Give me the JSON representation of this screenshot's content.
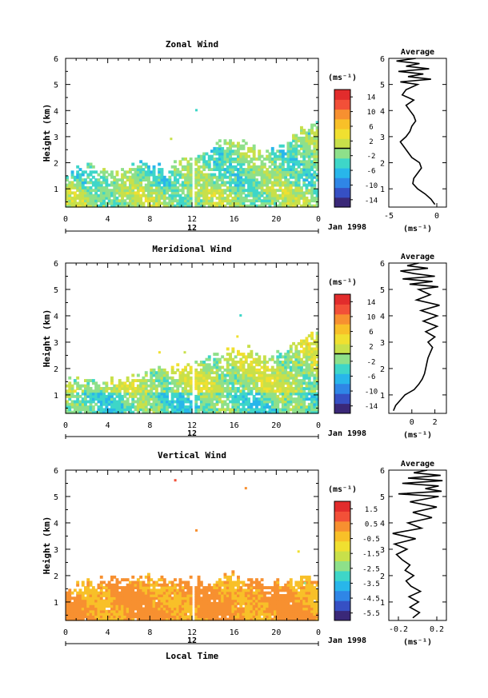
{
  "figure": {
    "x_title": "Local Time",
    "date_label": "Jan 1998",
    "day_label": "12"
  },
  "chart_data": [
    {
      "type": "heatmap",
      "title": "Zonal Wind",
      "xlabel": "",
      "ylabel": "Height (km)",
      "xlim": [
        0,
        24
      ],
      "ylim": [
        0.3,
        6
      ],
      "x_ticks": [
        "0",
        "4",
        "8",
        "12",
        "16",
        "20",
        "0"
      ],
      "y_ticks": [
        "1",
        "2",
        "3",
        "4",
        "5",
        "6"
      ],
      "colorbar": {
        "unit": "(ms⁻¹)",
        "labels": [
          "14",
          "10",
          "6",
          "2",
          "-2",
          "-6",
          "-10",
          "-14"
        ],
        "range": [
          -16,
          16
        ],
        "zero_line": true
      },
      "field": {
        "base": -2,
        "lowBoost": 1.5,
        "amp": 4.5,
        "tops": [
          1.6,
          1.7,
          1.8,
          1.8,
          1.7,
          1.6,
          1.9,
          2.0,
          1.8,
          1.6,
          1.9,
          2.1,
          2.3,
          2.5,
          2.7,
          2.8,
          2.9,
          2.7,
          2.3,
          2.4,
          2.6,
          2.9,
          3.2,
          3.4
        ],
        "density": 0.78,
        "sprinkle": [
          [
            12.3,
            4.0,
            -4
          ],
          [
            9.9,
            2.9,
            2
          ],
          [
            23.0,
            3.1,
            -6
          ],
          [
            21.5,
            3.0,
            0
          ]
        ],
        "seed": 11
      },
      "average": {
        "title": "Average",
        "xlim": [
          -5,
          1
        ],
        "x_ticks": [
          "-5",
          "0"
        ],
        "unit": "(ms⁻¹)",
        "profile": [
          [
            0.4,
            -0.2
          ],
          [
            0.6,
            -0.6
          ],
          [
            0.8,
            -1.2
          ],
          [
            1.0,
            -2.0
          ],
          [
            1.2,
            -2.5
          ],
          [
            1.4,
            -2.4
          ],
          [
            1.6,
            -2.0
          ],
          [
            1.8,
            -1.6
          ],
          [
            2.0,
            -1.8
          ],
          [
            2.2,
            -2.6
          ],
          [
            2.4,
            -3.0
          ],
          [
            2.6,
            -3.4
          ],
          [
            2.8,
            -3.8
          ],
          [
            3.0,
            -3.2
          ],
          [
            3.2,
            -2.8
          ],
          [
            3.4,
            -2.6
          ],
          [
            3.6,
            -2.2
          ],
          [
            3.8,
            -2.4
          ],
          [
            4.0,
            -2.8
          ],
          [
            4.2,
            -3.2
          ],
          [
            4.4,
            -2.4
          ],
          [
            4.6,
            -3.6
          ],
          [
            4.8,
            -3.2
          ],
          [
            5.0,
            -2.0
          ],
          [
            5.1,
            -3.8
          ],
          [
            5.2,
            -0.6
          ],
          [
            5.3,
            -3.0
          ],
          [
            5.4,
            -1.4
          ],
          [
            5.5,
            -4.0
          ],
          [
            5.6,
            -0.8
          ],
          [
            5.7,
            -3.2
          ],
          [
            5.8,
            -1.8
          ],
          [
            5.9,
            -4.2
          ],
          [
            6.0,
            -2.2
          ]
        ]
      }
    },
    {
      "type": "heatmap",
      "title": "Meridional Wind",
      "xlabel": "",
      "ylabel": "Height (km)",
      "xlim": [
        0,
        24
      ],
      "ylim": [
        0.3,
        6
      ],
      "x_ticks": [
        "0",
        "4",
        "8",
        "12",
        "16",
        "20",
        "0"
      ],
      "y_ticks": [
        "1",
        "2",
        "3",
        "4",
        "5",
        "6"
      ],
      "colorbar": {
        "unit": "(ms⁻¹)",
        "labels": [
          "14",
          "10",
          "6",
          "2",
          "-2",
          "-6",
          "-10",
          "-14"
        ],
        "range": [
          -16,
          16
        ],
        "zero_line": true
      },
      "field": {
        "base": 0.5,
        "lowBoost": -3.5,
        "amp": 4.5,
        "tops": [
          1.5,
          1.5,
          1.4,
          1.5,
          1.5,
          1.6,
          1.7,
          1.8,
          1.9,
          2.0,
          2.0,
          2.1,
          2.2,
          2.4,
          2.5,
          2.6,
          2.6,
          2.7,
          2.5,
          2.4,
          2.6,
          2.8,
          3.1,
          3.3
        ],
        "density": 0.8,
        "sprinkle": [
          [
            16.2,
            3.2,
            3
          ],
          [
            8.8,
            2.6,
            4
          ],
          [
            11.2,
            2.6,
            2
          ],
          [
            16.5,
            4.0,
            -3
          ],
          [
            22.9,
            2.9,
            6
          ]
        ],
        "seed": 23
      },
      "average": {
        "title": "Average",
        "xlim": [
          -2,
          3
        ],
        "x_ticks": [
          "0",
          "2"
        ],
        "unit": "(ms⁻¹)",
        "profile": [
          [
            0.4,
            -1.6
          ],
          [
            0.6,
            -1.4
          ],
          [
            0.8,
            -1.0
          ],
          [
            1.0,
            -0.6
          ],
          [
            1.2,
            0.2
          ],
          [
            1.4,
            0.6
          ],
          [
            1.6,
            0.9
          ],
          [
            1.8,
            1.1
          ],
          [
            2.0,
            1.2
          ],
          [
            2.2,
            1.3
          ],
          [
            2.4,
            1.4
          ],
          [
            2.6,
            1.6
          ],
          [
            2.8,
            1.8
          ],
          [
            3.0,
            1.4
          ],
          [
            3.2,
            2.0
          ],
          [
            3.4,
            1.2
          ],
          [
            3.6,
            2.2
          ],
          [
            3.8,
            1.0
          ],
          [
            4.0,
            2.2
          ],
          [
            4.2,
            0.8
          ],
          [
            4.4,
            2.4
          ],
          [
            4.6,
            0.4
          ],
          [
            4.8,
            1.6
          ],
          [
            5.0,
            0.6
          ],
          [
            5.1,
            2.3
          ],
          [
            5.2,
            -0.2
          ],
          [
            5.3,
            1.8
          ],
          [
            5.4,
            -0.8
          ],
          [
            5.5,
            2.0
          ],
          [
            5.6,
            0.2
          ],
          [
            5.7,
            -1.0
          ],
          [
            5.8,
            1.4
          ],
          [
            5.9,
            -0.4
          ],
          [
            6.0,
            0.6
          ]
        ]
      }
    },
    {
      "type": "heatmap",
      "title": "Vertical Wind",
      "xlabel": "Local Time",
      "ylabel": "Height (km)",
      "xlim": [
        0,
        24
      ],
      "ylim": [
        0.3,
        6
      ],
      "x_ticks": [
        "0",
        "4",
        "8",
        "12",
        "16",
        "20",
        "0"
      ],
      "y_ticks": [
        "1",
        "2",
        "3",
        "4",
        "5",
        "6"
      ],
      "colorbar": {
        "unit": "(ms⁻¹)",
        "labels": [
          "1.5",
          "0.5",
          "-0.5",
          "-1.5",
          "-2.5",
          "-3.5",
          "-4.5",
          "-5.5"
        ],
        "range": [
          -6.0,
          2.0
        ],
        "zero_line": false
      },
      "field": {
        "base": 0.1,
        "lowBoost": 0.0,
        "amp": 0.5,
        "tops": [
          1.5,
          1.6,
          1.7,
          1.8,
          1.9,
          1.9,
          1.9,
          1.9,
          1.8,
          1.8,
          1.8,
          1.9,
          1.8,
          1.7,
          1.9,
          2.0,
          1.9,
          1.8,
          1.7,
          1.7,
          1.7,
          1.8,
          1.9,
          1.9
        ],
        "density": 0.9,
        "sprinkle": [
          [
            10.3,
            5.6,
            0.8
          ],
          [
            17.0,
            5.3,
            0.4
          ],
          [
            12.3,
            3.7,
            0.3
          ],
          [
            22.0,
            2.9,
            -1.0
          ],
          [
            22.6,
            1.7,
            -2.5
          ]
        ],
        "seed": 37
      },
      "average": {
        "title": "Average",
        "xlim": [
          -0.3,
          0.3
        ],
        "x_ticks": [
          "-0.2",
          "0.2"
        ],
        "unit": "(ms⁻¹)",
        "profile": [
          [
            0.4,
            -0.05
          ],
          [
            0.6,
            0.02
          ],
          [
            0.8,
            -0.08
          ],
          [
            1.0,
            0.01
          ],
          [
            1.2,
            -0.09
          ],
          [
            1.4,
            0.03
          ],
          [
            1.6,
            -0.07
          ],
          [
            1.8,
            -0.12
          ],
          [
            2.0,
            -0.04
          ],
          [
            2.2,
            -0.13
          ],
          [
            2.4,
            -0.08
          ],
          [
            2.6,
            -0.16
          ],
          [
            2.8,
            -0.22
          ],
          [
            3.0,
            -0.11
          ],
          [
            3.2,
            -0.24
          ],
          [
            3.4,
            -0.02
          ],
          [
            3.6,
            -0.26
          ],
          [
            3.8,
            0.04
          ],
          [
            4.0,
            -0.1
          ],
          [
            4.2,
            0.15
          ],
          [
            4.4,
            -0.05
          ],
          [
            4.6,
            0.2
          ],
          [
            4.8,
            -0.08
          ],
          [
            5.0,
            0.22
          ],
          [
            5.1,
            -0.2
          ],
          [
            5.2,
            0.25
          ],
          [
            5.3,
            0.08
          ],
          [
            5.4,
            0.22
          ],
          [
            5.5,
            -0.16
          ],
          [
            5.6,
            0.26
          ],
          [
            5.7,
            -0.1
          ],
          [
            5.8,
            0.24
          ],
          [
            5.9,
            -0.04
          ],
          [
            6.0,
            0.1
          ]
        ]
      }
    }
  ],
  "colors": {
    "scale": [
      "#3a2878",
      "#3650c4",
      "#2f86e6",
      "#28b6ea",
      "#3ed6c8",
      "#8ee08a",
      "#c8e04a",
      "#f0e030",
      "#f8c028",
      "#f79030",
      "#f25038",
      "#e22c2c"
    ]
  }
}
